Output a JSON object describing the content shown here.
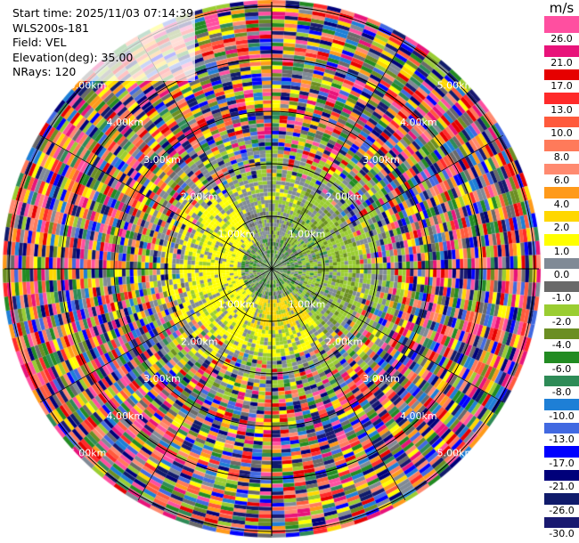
{
  "header": {
    "start_time": "Start time: 2025/11/03 07:14:39",
    "instrument": "WLS200s-181",
    "field": "Field: VEL",
    "elevation": "Elevation(deg): 35.00",
    "nrays": "NRays: 120"
  },
  "colorbar": {
    "unit": "m/s",
    "ticks": [
      "26.0",
      "21.0",
      "17.0",
      "13.0",
      "10.0",
      "8.0",
      "6.0",
      "4.0",
      "2.0",
      "1.0",
      "0.0",
      "-1.0",
      "-2.0",
      "-4.0",
      "-6.0",
      "-8.0",
      "-10.0",
      "-13.0",
      "-17.0",
      "-21.0",
      "-26.0",
      "-30.0"
    ],
    "colors": [
      "#ff4fa0",
      "#e8137a",
      "#e60000",
      "#ff2a2a",
      "#ff5a3c",
      "#ff7a5a",
      "#ff8a70",
      "#ff9a1a",
      "#ffd700",
      "#ffff00",
      "#808a96",
      "#696969",
      "#9acd32",
      "#6b8e23",
      "#228b22",
      "#2e8b57",
      "#1e7fd6",
      "#4169e1",
      "#0000ff",
      "#00007a",
      "#101b6b",
      "#191970"
    ]
  },
  "range_rings": {
    "labels": [
      "1.00km",
      "2.00km",
      "3.00km",
      "4.00km",
      "5.00km"
    ]
  }
}
